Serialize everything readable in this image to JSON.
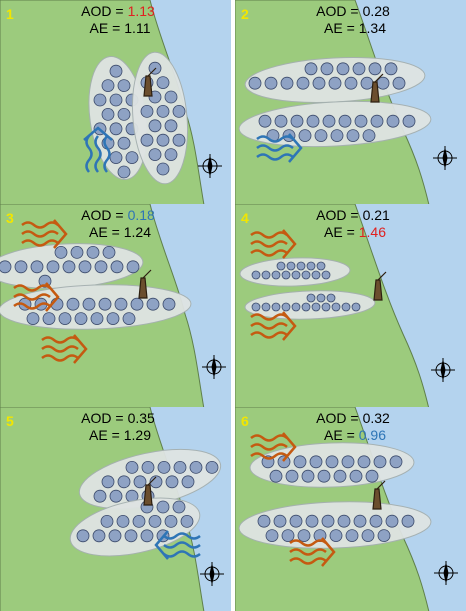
{
  "panels": [
    {
      "number": "1",
      "aod": {
        "label": "AOD =",
        "value": "1.13",
        "color": "#e02020"
      },
      "ae": {
        "label": "AE =",
        "value": "1.11",
        "color": "#000000"
      }
    },
    {
      "number": "2",
      "aod": {
        "label": "AOD =",
        "value": "0.28",
        "color": "#000000"
      },
      "ae": {
        "label": "AE =",
        "value": "1.34",
        "color": "#000000"
      }
    },
    {
      "number": "3",
      "aod": {
        "label": "AOD =",
        "value": "0.18",
        "color": "#2e75b6"
      },
      "ae": {
        "label": "AE =",
        "value": "1.24",
        "color": "#000000"
      }
    },
    {
      "number": "4",
      "aod": {
        "label": "AOD =",
        "value": "0.21",
        "color": "#000000"
      },
      "ae": {
        "label": "AE =",
        "value": "1.46",
        "color": "#e02020"
      }
    },
    {
      "number": "5",
      "aod": {
        "label": "AOD =",
        "value": "0.35",
        "color": "#000000"
      },
      "ae": {
        "label": "AE =",
        "value": "1.29",
        "color": "#000000"
      }
    },
    {
      "number": "6",
      "aod": {
        "label": "AOD =",
        "value": "0.32",
        "color": "#000000"
      },
      "ae": {
        "label": "AE =",
        "value": "0.96",
        "color": "#2e75b6"
      }
    }
  ]
}
